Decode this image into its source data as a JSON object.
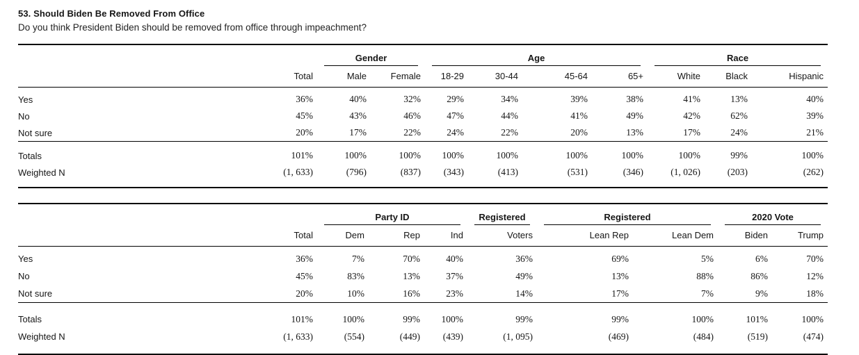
{
  "page": {
    "title": "53. Should Biden Be Removed From Office",
    "subtitle": "Do you think President Biden should be removed from office through impeachment?"
  },
  "tables": [
    {
      "name": "demographics-crosstab",
      "groups": [
        {
          "label": "",
          "span": 2
        },
        {
          "label": "Gender",
          "span": 2
        },
        {
          "label": "Age",
          "span": 4
        },
        {
          "label": "Race",
          "span": 3
        }
      ],
      "columns": [
        "Total",
        "Male",
        "Female",
        "18-29",
        "30-44",
        "45-64",
        "65+",
        "White",
        "Black",
        "Hispanic"
      ],
      "rows": [
        {
          "label": "Yes",
          "values": [
            "36%",
            "40%",
            "32%",
            "29%",
            "34%",
            "39%",
            "38%",
            "41%",
            "13%",
            "40%"
          ]
        },
        {
          "label": "No",
          "values": [
            "45%",
            "43%",
            "46%",
            "47%",
            "44%",
            "41%",
            "49%",
            "42%",
            "62%",
            "39%"
          ]
        },
        {
          "label": "Not sure",
          "values": [
            "20%",
            "17%",
            "22%",
            "24%",
            "22%",
            "20%",
            "13%",
            "17%",
            "24%",
            "21%"
          ]
        }
      ],
      "summary": [
        {
          "label": "Totals",
          "values": [
            "101%",
            "100%",
            "100%",
            "100%",
            "100%",
            "100%",
            "100%",
            "100%",
            "99%",
            "100%"
          ]
        },
        {
          "label": "Weighted N",
          "values": [
            "(1, 633)",
            "(796)",
            "(837)",
            "(343)",
            "(413)",
            "(531)",
            "(346)",
            "(1, 026)",
            "(203)",
            "(262)"
          ]
        }
      ]
    },
    {
      "name": "politics-crosstab",
      "groups": [
        {
          "label": "",
          "span": 2
        },
        {
          "label": "Party ID",
          "span": 3
        },
        {
          "label": "Registered",
          "span": 1
        },
        {
          "label": "Registered",
          "span": 2
        },
        {
          "label": "2020 Vote",
          "span": 2
        }
      ],
      "columns": [
        "Total",
        "Dem",
        "Rep",
        "Ind",
        "Voters",
        "Lean Rep",
        "Lean Dem",
        "Biden",
        "Trump"
      ],
      "rows": [
        {
          "label": "Yes",
          "values": [
            "36%",
            "7%",
            "70%",
            "40%",
            "36%",
            "69%",
            "5%",
            "6%",
            "70%"
          ]
        },
        {
          "label": "No",
          "values": [
            "45%",
            "83%",
            "13%",
            "37%",
            "49%",
            "13%",
            "88%",
            "86%",
            "12%"
          ]
        },
        {
          "label": "Not sure",
          "values": [
            "20%",
            "10%",
            "16%",
            "23%",
            "14%",
            "17%",
            "7%",
            "9%",
            "18%"
          ]
        }
      ],
      "summary": [
        {
          "label": "Totals",
          "values": [
            "101%",
            "100%",
            "99%",
            "100%",
            "99%",
            "99%",
            "100%",
            "101%",
            "100%"
          ]
        },
        {
          "label": "Weighted N",
          "values": [
            "(1, 633)",
            "(554)",
            "(449)",
            "(439)",
            "(1, 095)",
            "(469)",
            "(484)",
            "(519)",
            "(474)"
          ]
        }
      ]
    }
  ],
  "colors": {
    "text": "#161616",
    "rule": "#000000",
    "background": "#ffffff"
  }
}
